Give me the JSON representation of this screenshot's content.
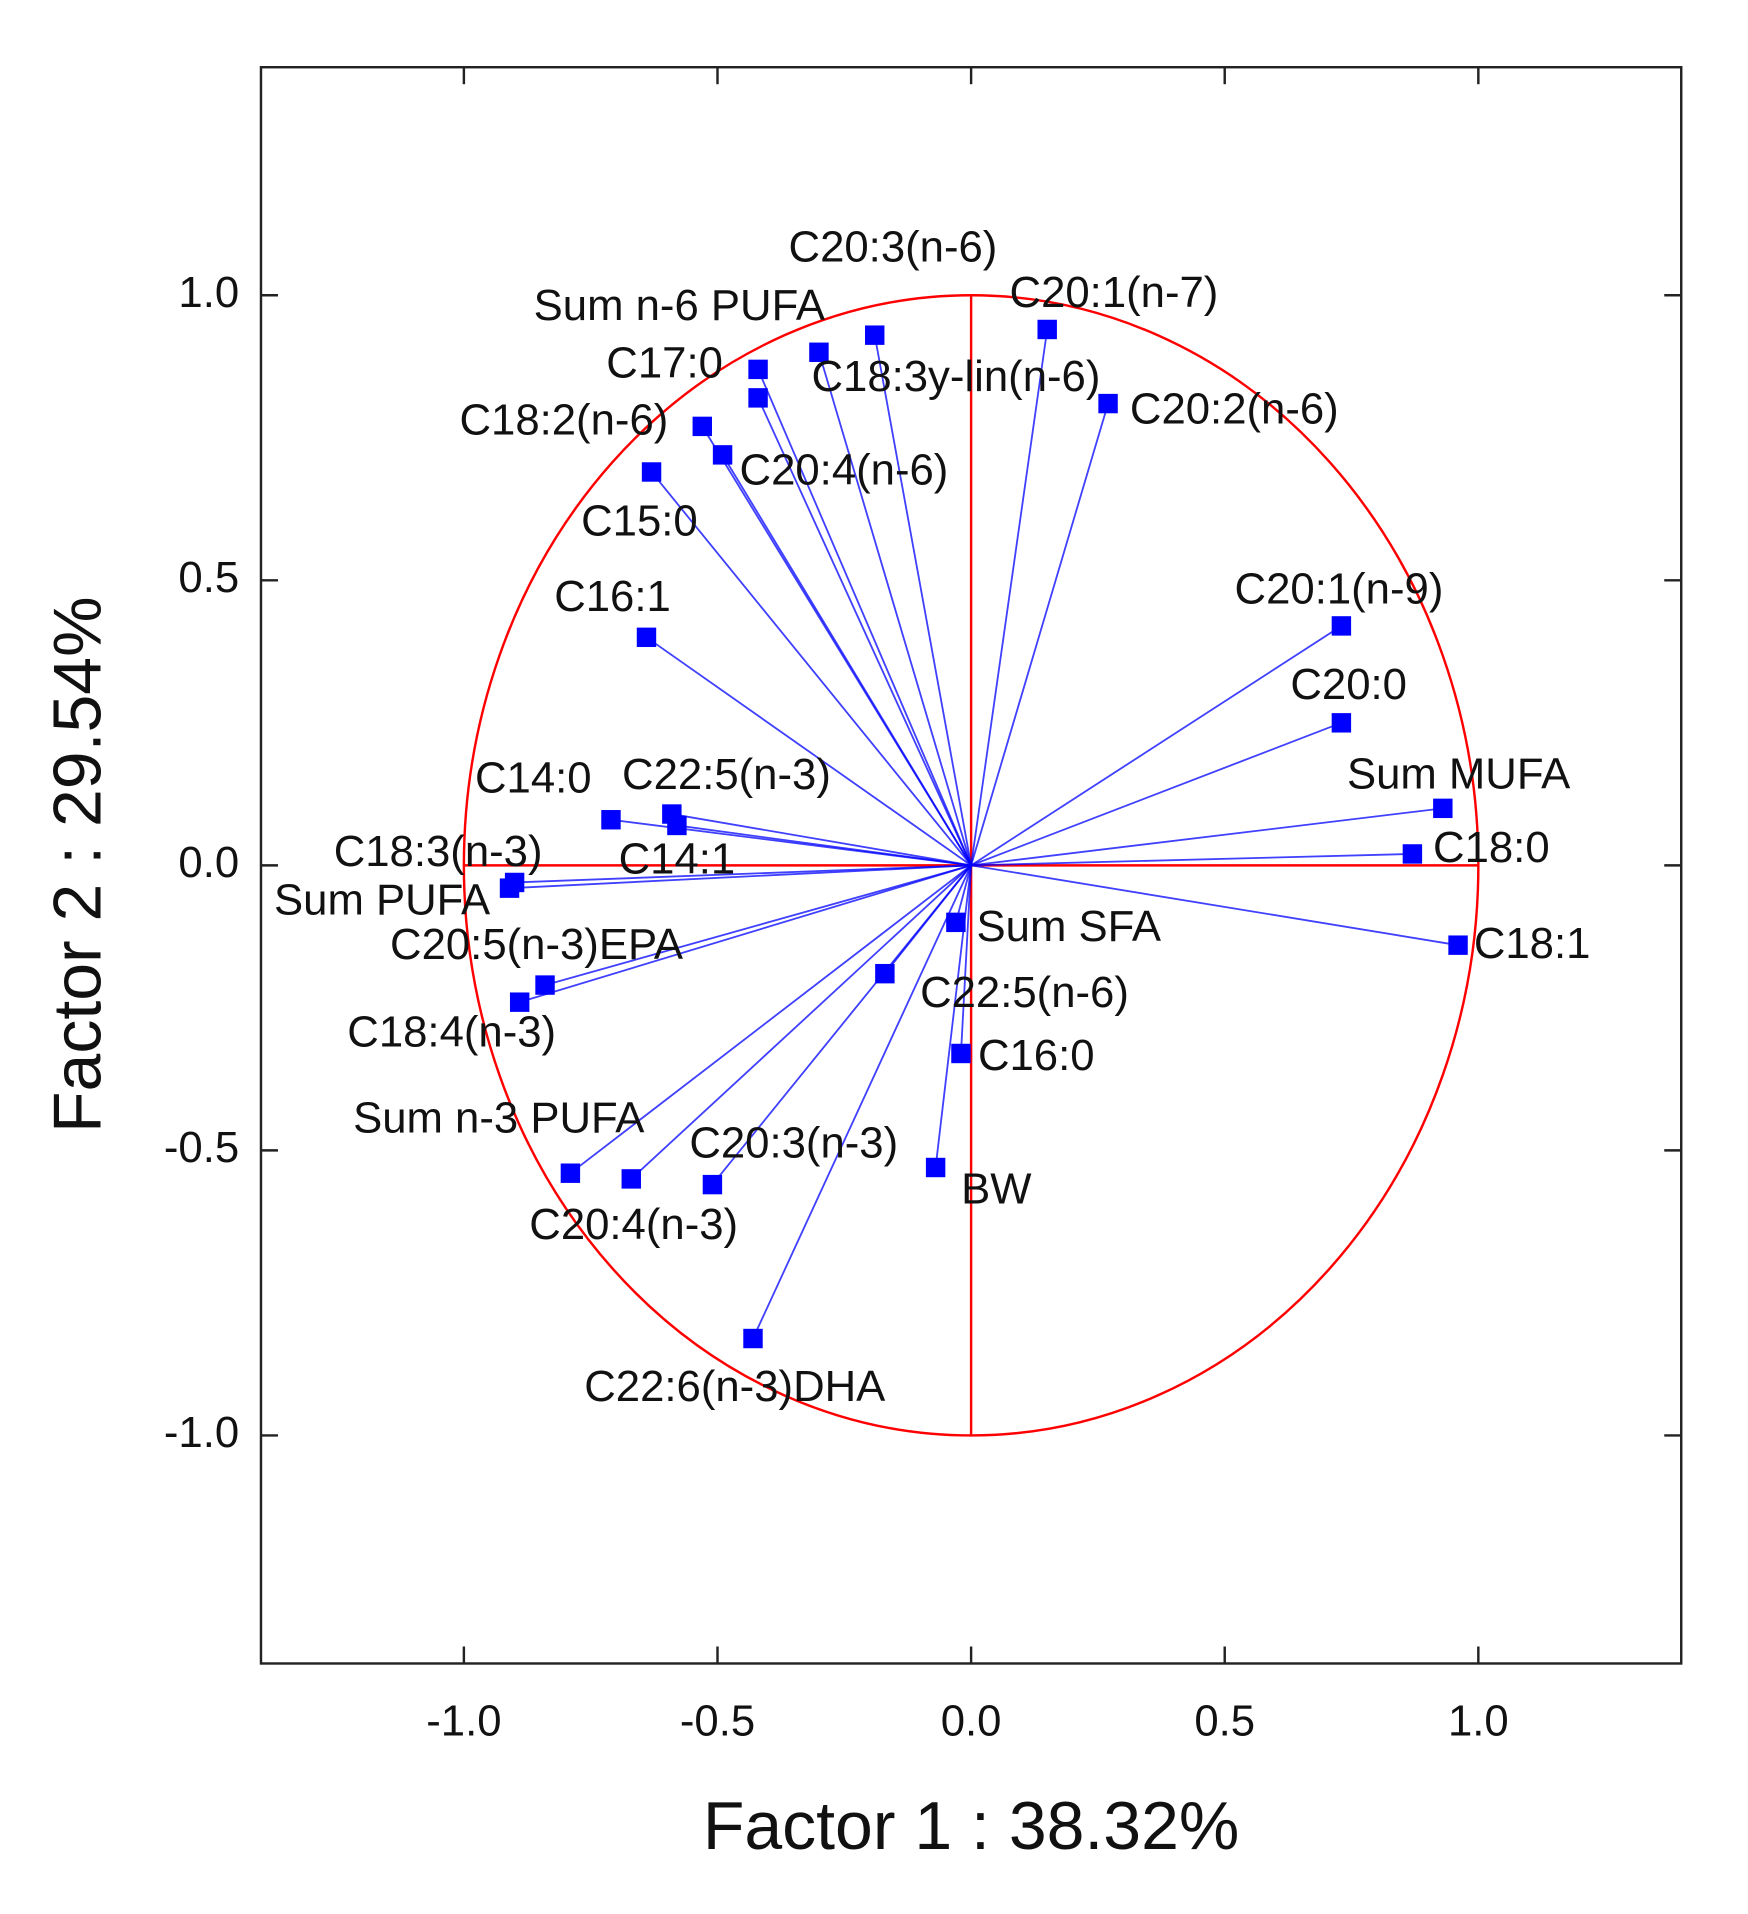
{
  "chart_data": {
    "type": "scatter",
    "xlabel": "Factor 1 : 38.32%",
    "ylabel": "Factor 2 : 29.54%",
    "xlim": [
      -1.4,
      1.4
    ],
    "ylim": [
      -1.4,
      1.4
    ],
    "xticks": [
      {
        "value": -1,
        "label": "-1.0"
      },
      -0.5,
      {
        "value": 0,
        "label": "0.0"
      },
      0.5,
      {
        "value": 1,
        "label": "1.0"
      }
    ],
    "yticks": [
      {
        "value": -1,
        "label": "-1.0"
      },
      -0.5,
      {
        "value": 0,
        "label": "0.0"
      },
      0.5,
      {
        "value": 1,
        "label": "1.0"
      }
    ],
    "color": "#0000ff",
    "circle_color": "#ff0000",
    "labels": [
      "C20:3(n-6)",
      "Sum n-6 PUFA",
      "C20:1(n-7)",
      "C17:0",
      "C18:3y-lin(n-6)",
      "C20:2(n-6)",
      "C18:2(n-6)",
      "C20:4(n-6)",
      "C15:0",
      "C16:1",
      "C20:1(n-9)",
      "C20:0",
      "Sum MUFA",
      "C18:0",
      "C18:1",
      "C14:0",
      "C22:5(n-3)",
      "C14:1",
      "C18:3(n-3)",
      "Sum PUFA",
      "C20:5(n-3)EPA",
      "C18:4(n-3)",
      "Sum SFA",
      "C22:5(n-6)",
      "C16:0",
      "BW",
      "Sum n-3 PUFA",
      "C20:4(n-3)",
      "C20:3(n-3)",
      "C22:6(n-3)DHA"
    ],
    "x": [
      -0.19,
      -0.3,
      0.15,
      -0.42,
      -0.42,
      0.27,
      -0.53,
      -0.49,
      -0.63,
      -0.64,
      0.73,
      0.73,
      0.93,
      0.87,
      0.96,
      -0.71,
      -0.59,
      -0.58,
      -0.9,
      -0.91,
      -0.84,
      -0.89,
      -0.03,
      -0.17,
      -0.02,
      -0.07,
      -0.79,
      -0.67,
      -0.51,
      -0.43
    ],
    "values": [
      0.93,
      0.9,
      0.94,
      0.87,
      0.82,
      0.81,
      0.77,
      0.72,
      0.69,
      0.4,
      0.42,
      0.25,
      0.1,
      0.02,
      -0.14,
      0.08,
      0.09,
      0.07,
      -0.03,
      -0.04,
      -0.21,
      -0.24,
      -0.1,
      -0.19,
      -0.33,
      -0.53,
      -0.54,
      -0.55,
      -0.56,
      -0.83
    ]
  }
}
